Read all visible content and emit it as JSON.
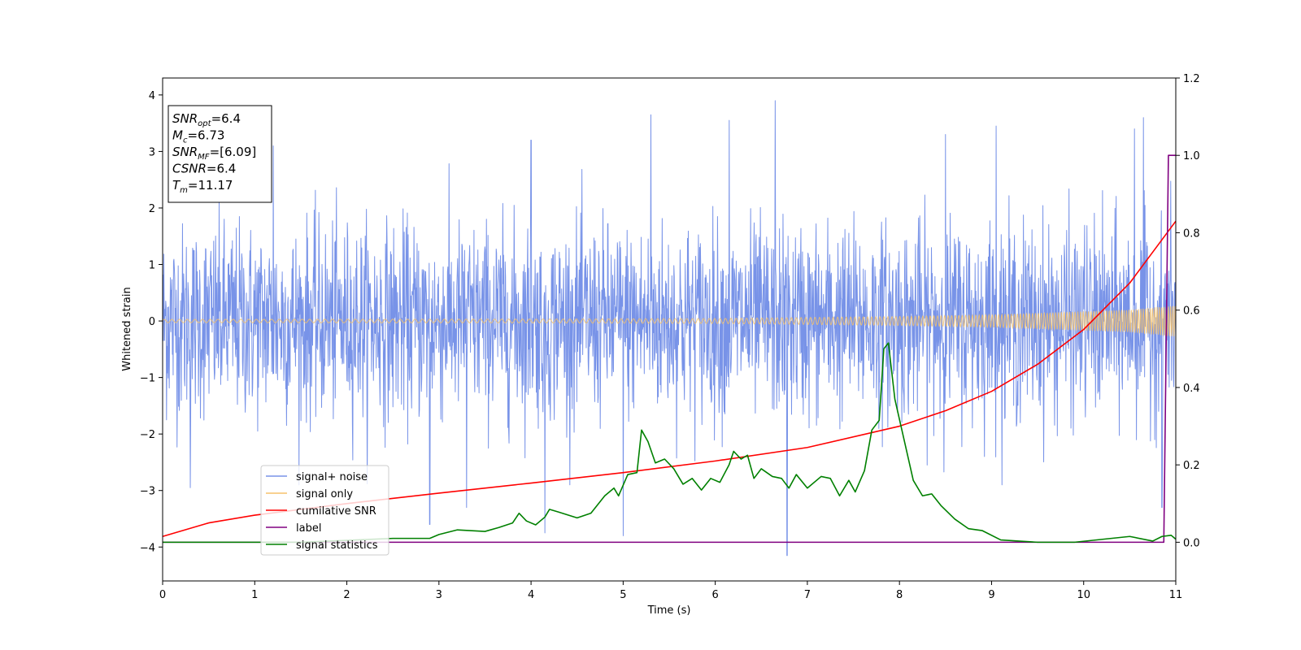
{
  "chart_data": {
    "type": "line",
    "xlabel": "Time (s)",
    "ylabel": "Whitened strain",
    "xlim": [
      0,
      11
    ],
    "ylim": [
      -4.6,
      4.3
    ],
    "ylim_right": [
      -0.1,
      1.2
    ],
    "x_ticks": [
      "0",
      "1",
      "2",
      "3",
      "4",
      "5",
      "6",
      "7",
      "8",
      "9",
      "10",
      "11"
    ],
    "y_ticks": [
      "4",
      "3",
      "2",
      "1",
      "0",
      "−1",
      "−2",
      "−3",
      "−4"
    ],
    "y_ticks_right": [
      "1.2",
      "1.0",
      "0.8",
      "0.6",
      "0.4",
      "0.2",
      "0.0"
    ],
    "grid": false,
    "legend_position": "lower-left",
    "annotation_box": {
      "position": "top-left",
      "lines": [
        {
          "main": "SNR",
          "sub": "opt",
          "value": "=6.4"
        },
        {
          "main": "M",
          "sub": "c",
          "value": "=6.73"
        },
        {
          "main": "SNR",
          "sub": "MF",
          "value": "=[6.09]"
        },
        {
          "main": "CSNR",
          "sub": "",
          "value": "=6.4"
        },
        {
          "main": "T",
          "sub": "m",
          "value": "=11.17"
        }
      ]
    },
    "series": [
      {
        "name": "signal+ noise",
        "color": "#7893e8",
        "axis": "left",
        "kind": "noise",
        "noise_sigma": 0.85,
        "peak_extremes": [
          [
            6.65,
            3.9
          ],
          [
            5.3,
            3.65
          ],
          [
            6.15,
            3.55
          ],
          [
            10.65,
            3.6
          ],
          [
            9.05,
            3.45
          ],
          [
            10.55,
            3.4
          ],
          [
            8.5,
            3.3
          ],
          [
            4.0,
            3.2
          ],
          [
            1.2,
            3.1
          ],
          [
            6.78,
            -4.15
          ],
          [
            5.0,
            -3.8
          ],
          [
            4.15,
            -3.75
          ],
          [
            3.3,
            -3.3
          ],
          [
            2.9,
            -3.6
          ],
          [
            0.3,
            -2.95
          ],
          [
            10.85,
            -3.3
          ]
        ]
      },
      {
        "name": "signal only",
        "color": "#f5c26b",
        "axis": "left",
        "kind": "chirp",
        "envelope": [
          [
            0,
            0.03
          ],
          [
            4,
            0.035
          ],
          [
            6,
            0.045
          ],
          [
            8,
            0.08
          ],
          [
            9,
            0.11
          ],
          [
            10,
            0.17
          ],
          [
            10.5,
            0.2
          ],
          [
            11,
            0.28
          ]
        ]
      },
      {
        "name": "cumilative SNR",
        "color": "#ff0000",
        "axis": "right",
        "points": [
          [
            0,
            0.015
          ],
          [
            0.5,
            0.05
          ],
          [
            1,
            0.07
          ],
          [
            2,
            0.1
          ],
          [
            3,
            0.127
          ],
          [
            4,
            0.153
          ],
          [
            5,
            0.18
          ],
          [
            6,
            0.21
          ],
          [
            7,
            0.245
          ],
          [
            8,
            0.3
          ],
          [
            8.5,
            0.34
          ],
          [
            9,
            0.39
          ],
          [
            9.5,
            0.46
          ],
          [
            10,
            0.55
          ],
          [
            10.5,
            0.67
          ],
          [
            11,
            0.83
          ]
        ]
      },
      {
        "name": "label",
        "color": "#800080",
        "axis": "right",
        "points": [
          [
            0,
            0.0
          ],
          [
            10.87,
            0.0
          ],
          [
            10.92,
            1.0
          ],
          [
            11,
            1.0
          ]
        ]
      },
      {
        "name": "signal statistics",
        "color": "#008000",
        "axis": "right",
        "points": [
          [
            0,
            0.0
          ],
          [
            1.5,
            0.0
          ],
          [
            2.5,
            0.01
          ],
          [
            2.9,
            0.01
          ],
          [
            3.0,
            0.02
          ],
          [
            3.2,
            0.032
          ],
          [
            3.5,
            0.028
          ],
          [
            3.65,
            0.038
          ],
          [
            3.8,
            0.05
          ],
          [
            3.87,
            0.075
          ],
          [
            3.95,
            0.055
          ],
          [
            4.05,
            0.045
          ],
          [
            4.15,
            0.065
          ],
          [
            4.2,
            0.085
          ],
          [
            4.3,
            0.078
          ],
          [
            4.5,
            0.063
          ],
          [
            4.65,
            0.075
          ],
          [
            4.8,
            0.12
          ],
          [
            4.9,
            0.14
          ],
          [
            4.95,
            0.12
          ],
          [
            5.05,
            0.175
          ],
          [
            5.15,
            0.18
          ],
          [
            5.2,
            0.29
          ],
          [
            5.27,
            0.26
          ],
          [
            5.35,
            0.205
          ],
          [
            5.45,
            0.215
          ],
          [
            5.55,
            0.19
          ],
          [
            5.65,
            0.15
          ],
          [
            5.75,
            0.165
          ],
          [
            5.85,
            0.135
          ],
          [
            5.95,
            0.165
          ],
          [
            6.05,
            0.155
          ],
          [
            6.15,
            0.2
          ],
          [
            6.2,
            0.235
          ],
          [
            6.28,
            0.215
          ],
          [
            6.35,
            0.225
          ],
          [
            6.42,
            0.165
          ],
          [
            6.5,
            0.19
          ],
          [
            6.62,
            0.17
          ],
          [
            6.72,
            0.165
          ],
          [
            6.8,
            0.14
          ],
          [
            6.88,
            0.175
          ],
          [
            7.0,
            0.14
          ],
          [
            7.15,
            0.17
          ],
          [
            7.25,
            0.165
          ],
          [
            7.35,
            0.12
          ],
          [
            7.45,
            0.16
          ],
          [
            7.52,
            0.13
          ],
          [
            7.62,
            0.185
          ],
          [
            7.7,
            0.29
          ],
          [
            7.78,
            0.315
          ],
          [
            7.83,
            0.5
          ],
          [
            7.88,
            0.515
          ],
          [
            7.95,
            0.37
          ],
          [
            8.05,
            0.265
          ],
          [
            8.15,
            0.16
          ],
          [
            8.25,
            0.12
          ],
          [
            8.35,
            0.125
          ],
          [
            8.45,
            0.095
          ],
          [
            8.6,
            0.06
          ],
          [
            8.75,
            0.035
          ],
          [
            8.9,
            0.03
          ],
          [
            9.1,
            0.006
          ],
          [
            9.5,
            0.0
          ],
          [
            9.9,
            0.0
          ],
          [
            10.1,
            0.005
          ],
          [
            10.3,
            0.01
          ],
          [
            10.5,
            0.015
          ],
          [
            10.75,
            0.003
          ],
          [
            10.85,
            0.015
          ],
          [
            10.95,
            0.018
          ],
          [
            11,
            0.008
          ]
        ]
      }
    ]
  }
}
